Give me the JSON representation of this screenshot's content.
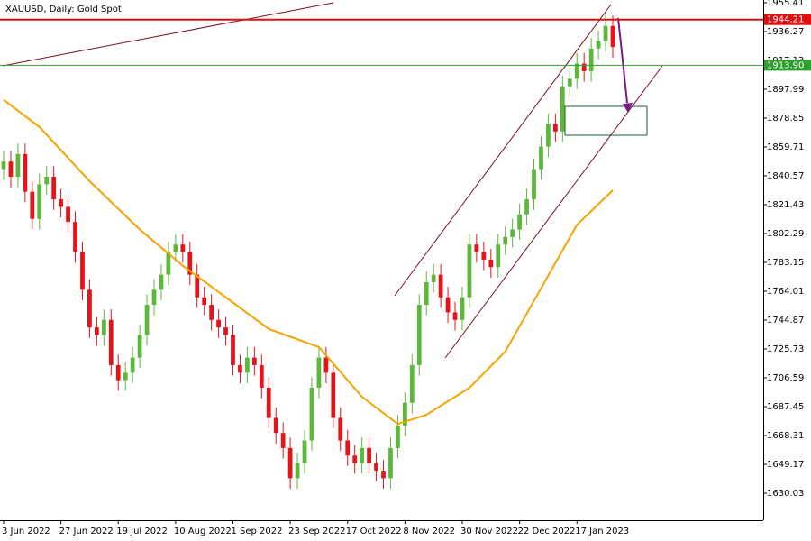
{
  "chart_data": {
    "type": "candlestick",
    "title": "XAUUSD, Daily:  Gold Spot",
    "up_color": "#5cb83a",
    "down_color": "#e5141a",
    "xlim": [
      0,
      106
    ],
    "ylim": [
      1612.1,
      1957.2
    ],
    "xticks": [
      {
        "value": 0,
        "label": "3 Jun 2022"
      },
      {
        "value": 8,
        "label": "27 Jun 2022"
      },
      {
        "value": 16,
        "label": "19 Jul 2022"
      },
      {
        "value": 24,
        "label": "10 Aug 2022"
      },
      {
        "value": 32,
        "label": "1 Sep 2022"
      },
      {
        "value": 40,
        "label": "23 Sep 2022"
      },
      {
        "value": 48,
        "label": "17 Oct 2022"
      },
      {
        "value": 56,
        "label": "8 Nov 2022"
      },
      {
        "value": 64,
        "label": "30 Nov 2022"
      },
      {
        "value": 72,
        "label": "22 Dec 2022"
      },
      {
        "value": 80,
        "label": "17 Jan 2023"
      }
    ],
    "yticks": [
      1955.41,
      1936.27,
      1917.13,
      1897.99,
      1878.85,
      1859.71,
      1840.57,
      1821.43,
      1802.29,
      1783.15,
      1764.01,
      1744.87,
      1725.73,
      1706.59,
      1687.45,
      1668.31,
      1649.17,
      1630.03
    ],
    "open": [
      1845,
      1850,
      1840,
      1855,
      1830,
      1812,
      1835,
      1840,
      1825,
      1820,
      1810,
      1790,
      1765,
      1740,
      1735,
      1745,
      1715,
      1705,
      1710,
      1720,
      1735,
      1755,
      1765,
      1775,
      1790,
      1795,
      1790,
      1775,
      1760,
      1755,
      1745,
      1740,
      1735,
      1715,
      1710,
      1720,
      1715,
      1700,
      1680,
      1670,
      1660,
      1640,
      1650,
      1665,
      1700,
      1720,
      1710,
      1680,
      1665,
      1655,
      1650,
      1660,
      1650,
      1645,
      1640,
      1660,
      1675,
      1690,
      1715,
      1755,
      1770,
      1775,
      1760,
      1750,
      1745,
      1760,
      1795,
      1790,
      1785,
      1780,
      1795,
      1800,
      1805,
      1815,
      1825,
      1845,
      1860,
      1875,
      1870,
      1900,
      1905,
      1915,
      1910,
      1925,
      1930,
      1940
    ],
    "high": [
      1857,
      1857,
      1862,
      1862,
      1837,
      1842,
      1847,
      1847,
      1832,
      1827,
      1817,
      1797,
      1772,
      1747,
      1752,
      1752,
      1722,
      1717,
      1727,
      1742,
      1762,
      1772,
      1782,
      1797,
      1802,
      1802,
      1797,
      1782,
      1767,
      1762,
      1752,
      1747,
      1742,
      1722,
      1727,
      1727,
      1722,
      1707,
      1687,
      1677,
      1667,
      1657,
      1672,
      1707,
      1727,
      1727,
      1717,
      1687,
      1672,
      1662,
      1667,
      1667,
      1657,
      1652,
      1667,
      1682,
      1697,
      1722,
      1762,
      1777,
      1782,
      1782,
      1767,
      1757,
      1767,
      1802,
      1802,
      1797,
      1792,
      1802,
      1807,
      1812,
      1822,
      1832,
      1852,
      1867,
      1882,
      1882,
      1907,
      1912,
      1922,
      1922,
      1932,
      1937,
      1949,
      1947
    ],
    "low": [
      1838,
      1833,
      1833,
      1823,
      1805,
      1805,
      1828,
      1818,
      1813,
      1803,
      1783,
      1758,
      1733,
      1728,
      1728,
      1708,
      1698,
      1698,
      1703,
      1713,
      1728,
      1748,
      1758,
      1768,
      1783,
      1783,
      1768,
      1753,
      1748,
      1738,
      1733,
      1728,
      1708,
      1703,
      1703,
      1708,
      1693,
      1673,
      1663,
      1653,
      1633,
      1633,
      1643,
      1658,
      1693,
      1703,
      1673,
      1658,
      1648,
      1643,
      1643,
      1643,
      1638,
      1633,
      1633,
      1653,
      1668,
      1683,
      1708,
      1748,
      1763,
      1753,
      1743,
      1738,
      1738,
      1753,
      1783,
      1778,
      1773,
      1773,
      1788,
      1793,
      1798,
      1808,
      1818,
      1838,
      1853,
      1863,
      1863,
      1893,
      1898,
      1903,
      1903,
      1918,
      1923,
      1919
    ],
    "close": [
      1850,
      1840,
      1855,
      1830,
      1812,
      1835,
      1840,
      1825,
      1820,
      1810,
      1790,
      1765,
      1740,
      1735,
      1745,
      1715,
      1705,
      1710,
      1720,
      1735,
      1755,
      1765,
      1775,
      1790,
      1795,
      1790,
      1775,
      1760,
      1755,
      1745,
      1740,
      1735,
      1715,
      1710,
      1720,
      1715,
      1700,
      1680,
      1670,
      1660,
      1640,
      1650,
      1665,
      1700,
      1720,
      1710,
      1680,
      1665,
      1655,
      1650,
      1660,
      1650,
      1645,
      1640,
      1660,
      1675,
      1690,
      1715,
      1755,
      1770,
      1775,
      1760,
      1750,
      1745,
      1760,
      1795,
      1790,
      1785,
      1780,
      1795,
      1800,
      1805,
      1815,
      1825,
      1845,
      1860,
      1875,
      1870,
      1900,
      1905,
      1915,
      1910,
      1925,
      1930,
      1940,
      1926
    ],
    "moving_average": {
      "color": "#f5a300",
      "x": [
        0,
        5,
        12,
        19,
        25,
        31,
        37,
        44,
        50,
        55,
        59,
        65,
        70,
        75,
        80,
        85
      ],
      "values": [
        1891,
        1873,
        1837,
        1805,
        1781,
        1760,
        1739,
        1727,
        1694,
        1676,
        1682,
        1700,
        1724,
        1766,
        1808,
        1831
      ]
    },
    "hlines": [
      {
        "value": 1944.21,
        "color": "#e01010"
      },
      {
        "value": 1913.9,
        "label": "1913.90",
        "color": "#2ea02e"
      }
    ]
  }
}
